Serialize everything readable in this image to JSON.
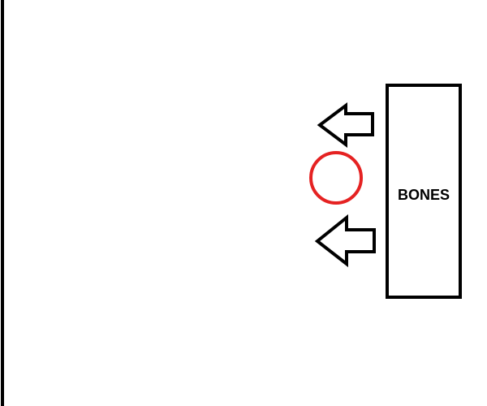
{
  "diagram": {
    "box_label": "BONES",
    "colors": {
      "stroke": "#000000",
      "circle": "#e52222",
      "background": "#ffffff"
    }
  }
}
